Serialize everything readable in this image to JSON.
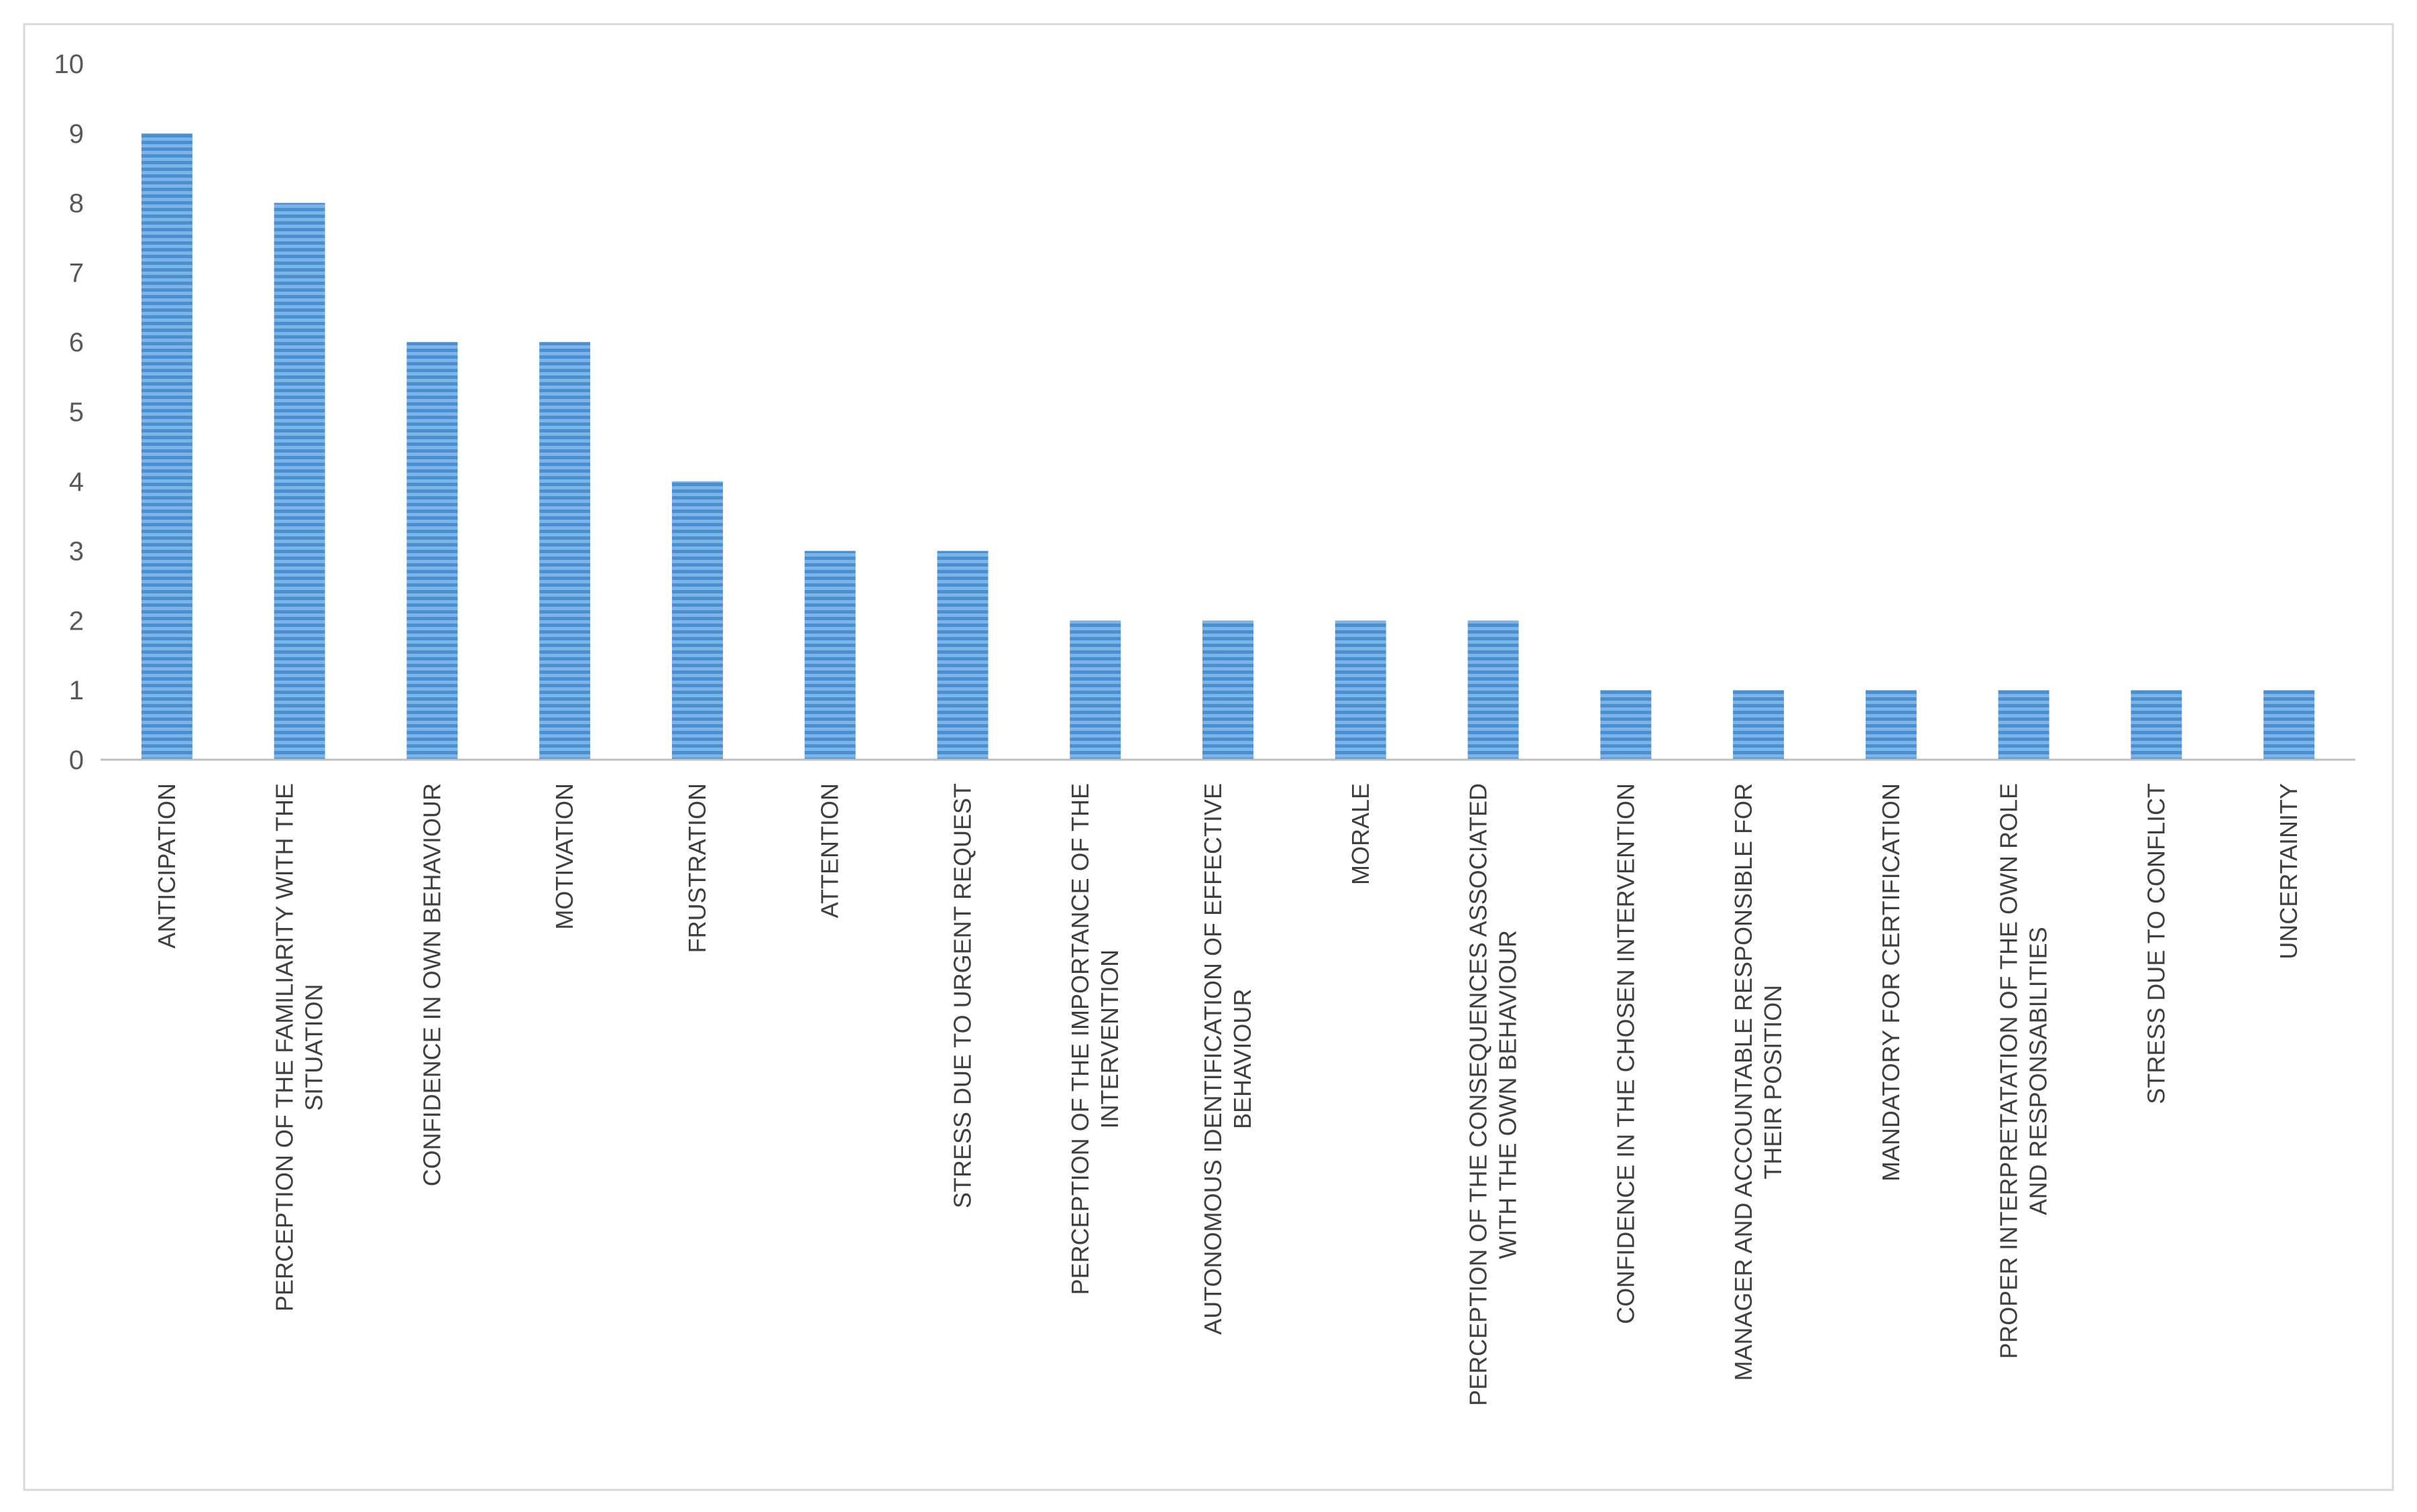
{
  "chart_data": {
    "type": "bar",
    "categories": [
      [
        "ANTICIPATION"
      ],
      [
        "PERCEPTION OF THE FAMILIARITY WITH THE",
        "SITUATION"
      ],
      [
        "CONFIDENCE IN OWN BEHAVIOUR"
      ],
      [
        "MOTIVATION"
      ],
      [
        "FRUSTRATION"
      ],
      [
        "ATTENTION"
      ],
      [
        "STRESS DUE TO URGENT REQUEST"
      ],
      [
        "PERCEPTION OF THE IMPORTANCE OF THE",
        "INTERVENTION"
      ],
      [
        "AUTONOMOUS IDENTIFICATION OF EFFECTIVE",
        "BEHAVIOUR"
      ],
      [
        "MORALE"
      ],
      [
        "PERCEPTION OF THE CONSEQUENCES ASSOCIATED",
        "WITH THE OWN BEHAVIOUR"
      ],
      [
        "CONFIDENCE IN THE CHOSEN INTERVENTION"
      ],
      [
        "MANAGER AND ACCOUNTABLE RESPONSIBLE FOR",
        "THEIR POSITION"
      ],
      [
        "MANDATORY FOR CERTIFICATION"
      ],
      [
        "PROPER INTERPRETATATION OF THE OWN ROLE",
        "AND RESPONSABILITIES"
      ],
      [
        "STRESS DUE TO CONFLICT"
      ],
      [
        "UNCERTAINITY"
      ]
    ],
    "values": [
      9,
      8,
      6,
      6,
      4,
      3,
      3,
      2,
      2,
      2,
      2,
      1,
      1,
      1,
      1,
      1,
      1
    ],
    "ylim": [
      0,
      10
    ],
    "yticks": [
      "0",
      "1",
      "2",
      "3",
      "4",
      "5",
      "6",
      "7",
      "8",
      "9",
      "10"
    ],
    "title": "",
    "xlabel": "",
    "ylabel": "",
    "grid": false,
    "legend": "none",
    "colors": {
      "bar": "#4a90d0",
      "bar_stripe": "#ffffff",
      "axis": "#bfbfbf",
      "border": "#d9d9d9"
    }
  }
}
